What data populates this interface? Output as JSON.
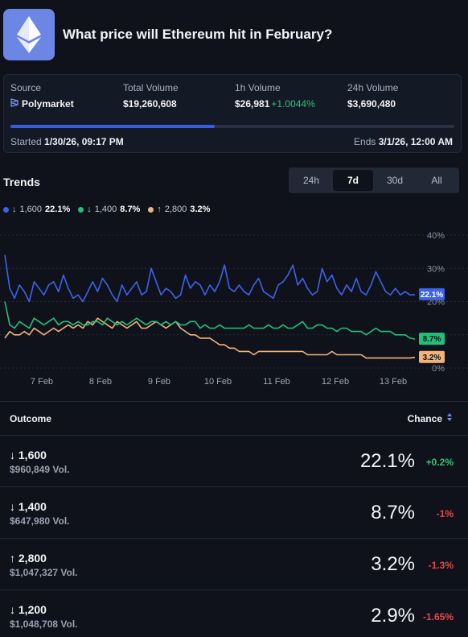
{
  "header": {
    "title": "What price will Ethereum hit in February?",
    "logo_icon": "ethereum-icon"
  },
  "stats": {
    "source_label": "Source",
    "source_value": "Polymarket",
    "total_volume_label": "Total Volume",
    "total_volume": "$19,260,608",
    "h1_volume_label": "1h Volume",
    "h1_volume": "$26,981",
    "h1_change": "+1.0044%",
    "h24_volume_label": "24h Volume",
    "h24_volume": "$3,690,480",
    "progress_fraction": 0.46,
    "started_label": "Started",
    "started_value": "1/30/26, 09:17 PM",
    "ends_label": "Ends",
    "ends_value": "3/1/26, 12:00 AM"
  },
  "trends": {
    "title": "Trends",
    "ranges": [
      "24h",
      "7d",
      "30d",
      "All"
    ],
    "active_range": "7d"
  },
  "legend": [
    {
      "arrow": "↓",
      "label": "1,600",
      "value": "22.1%",
      "color": "#3d63e8"
    },
    {
      "arrow": "↓",
      "label": "1,400",
      "value": "8.7%",
      "color": "#22c07c"
    },
    {
      "arrow": "↑",
      "label": "2,800",
      "value": "3.2%",
      "color": "#f2b27c"
    }
  ],
  "chart_data": {
    "type": "line",
    "x_labels": [
      "7 Feb",
      "8 Feb",
      "9 Feb",
      "10 Feb",
      "11 Feb",
      "12 Feb",
      "13 Feb"
    ],
    "y_ticks": [
      "40%",
      "30%",
      "20%",
      "0%"
    ],
    "ylim": [
      0,
      40
    ],
    "series": [
      {
        "name": "1,600",
        "color": "#3d63e8",
        "end_label": "22.1%",
        "values": [
          34,
          24,
          21,
          25,
          23,
          20,
          26,
          24,
          22,
          25,
          26,
          23,
          28,
          24,
          21,
          22,
          20,
          23,
          26,
          23,
          27,
          25,
          22,
          20,
          25,
          22,
          24,
          26,
          22,
          23,
          30,
          26,
          22,
          24,
          23,
          21,
          22,
          28,
          24,
          26,
          25,
          22,
          25,
          23,
          26,
          31,
          24,
          23,
          25,
          23,
          22,
          25,
          27,
          23,
          22,
          21,
          25,
          26,
          28,
          31,
          25,
          27,
          24,
          22,
          23,
          30,
          26,
          28,
          24,
          22,
          25,
          23,
          27,
          23,
          22,
          25,
          29,
          26,
          23,
          22,
          24,
          22,
          23,
          22,
          22.1
        ]
      },
      {
        "name": "1,400",
        "color": "#22c07c",
        "end_label": "8.7%",
        "values": [
          20,
          13,
          12,
          14,
          13,
          12,
          15,
          14,
          13,
          14,
          15,
          13,
          14,
          14,
          13,
          14,
          13,
          13,
          14,
          14,
          13,
          15,
          14,
          13,
          14,
          13,
          14,
          15,
          14,
          13,
          14,
          14,
          13,
          14,
          13,
          14,
          13,
          13,
          14,
          14,
          12,
          13,
          12,
          12,
          13,
          12,
          12,
          12,
          12,
          12,
          13,
          12,
          12,
          12,
          13,
          12,
          12,
          13,
          12,
          12,
          13,
          14,
          12,
          12,
          13,
          13,
          12,
          12,
          11,
          12,
          12,
          11,
          11,
          11,
          10,
          11,
          12,
          11,
          11,
          11,
          10,
          10,
          10,
          9,
          8.7
        ]
      },
      {
        "name": "2,800",
        "color": "#f2b27c",
        "end_label": "3.2%",
        "values": [
          9,
          11,
          10,
          10,
          11,
          10,
          12,
          11,
          10,
          11,
          12,
          11,
          12,
          13,
          12,
          13,
          12,
          14,
          13,
          15,
          14,
          13,
          12,
          14,
          13,
          12,
          13,
          14,
          12,
          12,
          13,
          14,
          13,
          12,
          13,
          14,
          12,
          11,
          10,
          10,
          9,
          9,
          9,
          8,
          7,
          7,
          6,
          6,
          5,
          5,
          5,
          4,
          5,
          5,
          5,
          5,
          5,
          5,
          5,
          5,
          5,
          5,
          4,
          4,
          4,
          4,
          4,
          5,
          4,
          4,
          4,
          4,
          4,
          4,
          3,
          3,
          3,
          3,
          3,
          3,
          3,
          3,
          3,
          3,
          3.2
        ]
      }
    ]
  },
  "table": {
    "outcome_label": "Outcome",
    "chance_label": "Chance",
    "rows": [
      {
        "arrow": "↓",
        "name": "1,600",
        "volume": "$960,849 Vol.",
        "pct": "22.1%",
        "change": "+0.2%",
        "dir": "pos"
      },
      {
        "arrow": "↓",
        "name": "1,400",
        "volume": "$647,980 Vol.",
        "pct": "8.7%",
        "change": "-1%",
        "dir": "neg"
      },
      {
        "arrow": "↑",
        "name": "2,800",
        "volume": "$1,047,327 Vol.",
        "pct": "3.2%",
        "change": "-1.3%",
        "dir": "neg"
      },
      {
        "arrow": "↓",
        "name": "1,200",
        "volume": "$1,048,708 Vol.",
        "pct": "2.9%",
        "change": "-1.65%",
        "dir": "neg"
      }
    ]
  }
}
